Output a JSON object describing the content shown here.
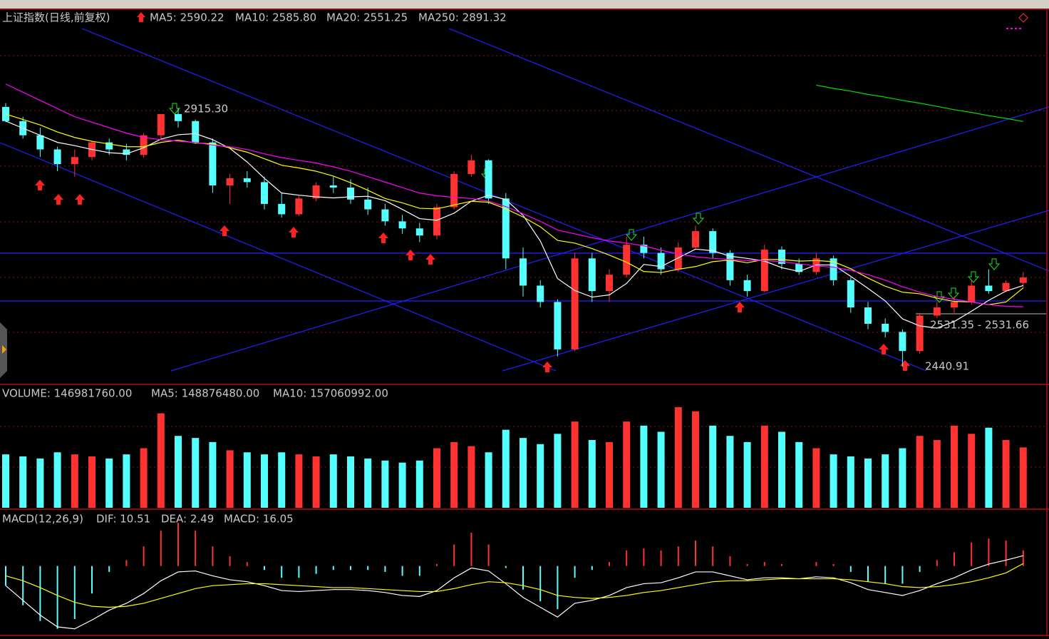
{
  "chart_data": [
    {
      "type": "candlestick",
      "title": "上证指数(日线,前复权)",
      "open": [
        2918,
        2892,
        2866,
        2840,
        2813,
        2826,
        2853,
        2840,
        2830,
        2866,
        2905,
        2892,
        2853,
        2774,
        2787,
        2780,
        2740,
        2721,
        2750,
        2774,
        2770,
        2748,
        2730,
        2708,
        2695,
        2682,
        2734,
        2795,
        2820,
        2750,
        2640,
        2590,
        2560,
        2473,
        2640,
        2580,
        2610,
        2665,
        2650,
        2620,
        2660,
        2690,
        2650,
        2600,
        2580,
        2656,
        2630,
        2615,
        2640,
        2600,
        2550,
        2520,
        2505,
        2470,
        2535,
        2550,
        2560,
        2590,
        2580,
        2595
      ],
      "high": [
        2925,
        2900,
        2880,
        2845,
        2840,
        2856,
        2860,
        2850,
        2870,
        2905,
        2915.3,
        2895,
        2860,
        2795,
        2800,
        2790,
        2760,
        2755,
        2780,
        2790,
        2785,
        2770,
        2740,
        2720,
        2705,
        2740,
        2800,
        2830,
        2822,
        2760,
        2660,
        2600,
        2565,
        2650,
        2650,
        2620,
        2680,
        2680,
        2660,
        2670,
        2700,
        2695,
        2655,
        2610,
        2665,
        2662,
        2640,
        2650,
        2645,
        2605,
        2560,
        2530,
        2510,
        2540,
        2560,
        2570,
        2600,
        2620,
        2600,
        2615
      ],
      "low": [
        2890,
        2860,
        2826,
        2800,
        2790,
        2820,
        2830,
        2820,
        2825,
        2860,
        2880,
        2850,
        2760,
        2740,
        2770,
        2730,
        2715,
        2718,
        2745,
        2760,
        2740,
        2720,
        2700,
        2685,
        2670,
        2675,
        2730,
        2790,
        2740,
        2620,
        2570,
        2550,
        2460,
        2470,
        2560,
        2560,
        2605,
        2640,
        2610,
        2615,
        2655,
        2640,
        2590,
        2570,
        2578,
        2620,
        2610,
        2610,
        2590,
        2540,
        2510,
        2495,
        2440.91,
        2465,
        2530,
        2540,
        2555,
        2575,
        2578,
        2585
      ],
      "close": [
        2892,
        2866,
        2840,
        2813,
        2826,
        2853,
        2840,
        2830,
        2866,
        2905,
        2892,
        2853,
        2774,
        2787,
        2780,
        2740,
        2721,
        2750,
        2774,
        2770,
        2748,
        2730,
        2708,
        2695,
        2682,
        2734,
        2795,
        2820,
        2750,
        2640,
        2590,
        2560,
        2473,
        2640,
        2580,
        2610,
        2665,
        2650,
        2620,
        2660,
        2690,
        2650,
        2600,
        2580,
        2656,
        2630,
        2615,
        2640,
        2600,
        2550,
        2520,
        2505,
        2470,
        2535,
        2550,
        2560,
        2590,
        2580,
        2595,
        2605
      ],
      "up_color": "#ff3232",
      "down_color": "#54ffff",
      "ylim": [
        2410,
        3096
      ],
      "series": [
        {
          "name": "MA5: 2590.22",
          "color": "#ffffff",
          "values": [
            2892,
            2879,
            2866,
            2853,
            2847,
            2840,
            2834,
            2832,
            2843,
            2859,
            2867,
            2869,
            2858,
            2842,
            2817,
            2787,
            2760,
            2756,
            2753,
            2751,
            2753,
            2754,
            2746,
            2730,
            2713,
            2710,
            2723,
            2745,
            2756,
            2748,
            2719,
            2672,
            2603,
            2581,
            2569,
            2573,
            2594,
            2629,
            2625,
            2641,
            2657,
            2654,
            2644,
            2640,
            2635,
            2623,
            2616,
            2628,
            2628,
            2607,
            2585,
            2562,
            2529,
            2516,
            2512,
            2524,
            2543,
            2563,
            2580,
            2590.22
          ]
        },
        {
          "name": "MA10: 2585.80",
          "color": "#ffff00",
          "values": [
            2905,
            2895,
            2885,
            2872,
            2862,
            2855,
            2850,
            2845,
            2845,
            2853,
            2857,
            2852,
            2850,
            2843,
            2835,
            2823,
            2811,
            2806,
            2800,
            2791,
            2779,
            2765,
            2750,
            2742,
            2732,
            2731,
            2738,
            2745,
            2743,
            2731,
            2716,
            2698,
            2673,
            2668,
            2658,
            2646,
            2633,
            2616,
            2614,
            2620,
            2625,
            2634,
            2637,
            2632,
            2638,
            2638,
            2635,
            2636,
            2634,
            2621,
            2604,
            2589,
            2578,
            2575,
            2567,
            2561,
            2560,
            2555,
            2560,
            2585.8
          ]
        },
        {
          "name": "MA20: 2551.25",
          "color": "#ff00ff",
          "values": [
            2960,
            2945,
            2930,
            2915,
            2900,
            2890,
            2880,
            2870,
            2862,
            2858,
            2855,
            2853,
            2848,
            2845,
            2840,
            2832,
            2825,
            2820,
            2815,
            2808,
            2800,
            2790,
            2780,
            2770,
            2760,
            2755,
            2752,
            2750,
            2745,
            2735,
            2722,
            2708,
            2692,
            2685,
            2678,
            2672,
            2668,
            2663,
            2655,
            2648,
            2643,
            2640,
            2638,
            2636,
            2636,
            2634,
            2630,
            2626,
            2624,
            2618,
            2610,
            2600,
            2588,
            2578,
            2570,
            2565,
            2560,
            2555,
            2552,
            2551.25
          ]
        },
        {
          "name": "MA250: 2891.32",
          "color": "#00e000",
          "values": [
            null,
            null,
            null,
            null,
            null,
            null,
            null,
            null,
            null,
            null,
            null,
            null,
            null,
            null,
            null,
            null,
            null,
            null,
            null,
            null,
            null,
            null,
            null,
            null,
            null,
            null,
            null,
            null,
            null,
            null,
            null,
            null,
            null,
            null,
            null,
            null,
            null,
            null,
            null,
            null,
            null,
            null,
            null,
            null,
            null,
            null,
            null,
            2958,
            2952,
            2947,
            2941,
            2936,
            2930,
            2925,
            2919,
            2913,
            2908,
            2902,
            2897,
            2891.32
          ]
        }
      ],
      "annotations": [
        "2915.30",
        "2440.91",
        "2531.35 - 2531.66"
      ]
    },
    {
      "type": "bar",
      "title": "VOLUME: 146981760.00",
      "ylim": [
        0,
        290000000
      ],
      "legend": [
        {
          "text": "MA5: 148876480.00",
          "color": "#ffffff"
        },
        {
          "text": "MA10: 157060992.00",
          "color": "#ffff00"
        }
      ],
      "values": [
        130000000.0,
        125000000.0,
        120000000.0,
        135000000.0,
        130000000.0,
        125000000.0,
        120000000.0,
        130000000.0,
        145000000.0,
        230000000.0,
        175000000.0,
        170000000.0,
        160000000.0,
        140000000.0,
        135000000.0,
        130000000.0,
        135000000.0,
        130000000.0,
        125000000.0,
        130000000.0,
        125000000.0,
        120000000.0,
        115000000.0,
        110000000.0,
        115000000.0,
        145000000.0,
        160000000.0,
        150000000.0,
        135000000.0,
        190000000.0,
        170000000.0,
        155000000.0,
        180000000.0,
        210000000.0,
        165000000.0,
        160000000.0,
        210000000.0,
        200000000.0,
        185000000.0,
        245000000.0,
        235000000.0,
        200000000.0,
        175000000.0,
        160000000.0,
        200000000.0,
        185000000.0,
        160000000.0,
        145000000.0,
        130000000.0,
        125000000.0,
        120000000.0,
        130000000.0,
        145000000.0,
        175000000.0,
        165000000.0,
        200000000.0,
        180000000.0,
        195000000.0,
        165000000.0,
        146981760
      ]
    },
    {
      "type": "macd",
      "title": "MACD(12,26,9)",
      "ylim": [
        -70,
        55
      ],
      "up_color": "#ff3232",
      "down_color": "#54ffff",
      "series": [
        {
          "name": "DIF: 10.51",
          "color": "#ffffff",
          "values": [
            -20,
            -35,
            -50,
            -62,
            -64,
            -55,
            -45,
            -38,
            -28,
            -15,
            -6,
            -5,
            -10,
            -14,
            -16,
            -20,
            -25,
            -26,
            -25,
            -24,
            -24,
            -25,
            -27,
            -30,
            -31,
            -25,
            -12,
            -2,
            -5,
            -18,
            -32,
            -42,
            -52,
            -38,
            -35,
            -30,
            -22,
            -18,
            -17,
            -12,
            -6,
            -6,
            -10,
            -14,
            -12,
            -12,
            -13,
            -11,
            -12,
            -17,
            -24,
            -27,
            -30,
            -25,
            -18,
            -12,
            -4,
            2,
            6,
            10.51
          ]
        },
        {
          "name": "DEA: 2.49",
          "color": "#ffff00",
          "values": [
            -10,
            -15,
            -22,
            -30,
            -37,
            -41,
            -42,
            -41,
            -38,
            -33,
            -28,
            -23,
            -20,
            -19,
            -18,
            -18,
            -19,
            -20,
            -21,
            -22,
            -22,
            -23,
            -24,
            -25,
            -26,
            -26,
            -23,
            -19,
            -16,
            -17,
            -20,
            -24,
            -30,
            -32,
            -33,
            -32,
            -30,
            -27,
            -25,
            -22,
            -19,
            -16,
            -15,
            -15,
            -14,
            -13,
            -13,
            -13,
            -13,
            -14,
            -16,
            -18,
            -21,
            -22,
            -21,
            -19,
            -16,
            -12,
            -7,
            2.49
          ]
        },
        {
          "name": "MACD: 16.05",
          "color": "#ff00ff",
          "values": [
            -20,
            -40,
            -56,
            -64,
            -54,
            -28,
            -6,
            6,
            20,
            36,
            44,
            36,
            20,
            10,
            4,
            -4,
            -12,
            -12,
            -8,
            -4,
            -4,
            -4,
            -6,
            -10,
            -10,
            2,
            22,
            34,
            22,
            -2,
            -24,
            -36,
            -44,
            -12,
            -4,
            4,
            16,
            18,
            16,
            20,
            26,
            20,
            10,
            2,
            4,
            2,
            0,
            4,
            2,
            -6,
            -16,
            -18,
            -18,
            -6,
            6,
            14,
            24,
            28,
            26,
            16.05
          ]
        }
      ]
    }
  ]
}
